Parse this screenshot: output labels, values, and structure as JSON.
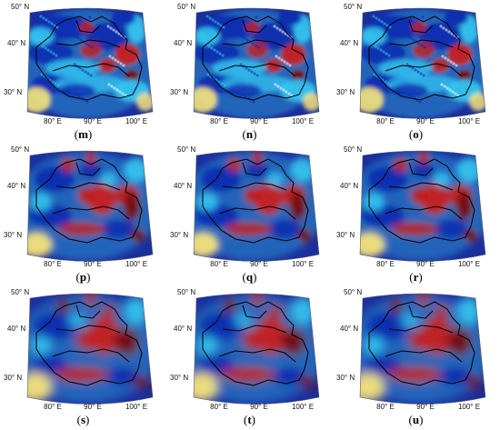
{
  "axes": {
    "lat_labels": [
      "50° N",
      "40° N",
      "30° N"
    ],
    "lon_labels": [
      "80° E",
      "90° E",
      "100° E"
    ]
  },
  "colors": {
    "ocean_background": "#1a2f9e",
    "high": "#c81e1e",
    "very_high": "#7a0a0a",
    "low": "#0d2bb0",
    "mid_cyan": "#33c6f0",
    "mid_yellow": "#f5e37a",
    "boundary": "#000000"
  },
  "panels": [
    {
      "id": "m",
      "caption": "(m)",
      "style": "fine"
    },
    {
      "id": "n",
      "caption": "(n)",
      "style": "fine"
    },
    {
      "id": "o",
      "caption": "(o)",
      "style": "fine"
    },
    {
      "id": "p",
      "caption": "(p)",
      "style": "medium"
    },
    {
      "id": "q",
      "caption": "(q)",
      "style": "medium"
    },
    {
      "id": "r",
      "caption": "(r)",
      "style": "medium"
    },
    {
      "id": "s",
      "caption": "(s)",
      "style": "smooth"
    },
    {
      "id": "t",
      "caption": "(t)",
      "style": "smooth"
    },
    {
      "id": "u",
      "caption": "(u)",
      "style": "smooth"
    }
  ]
}
